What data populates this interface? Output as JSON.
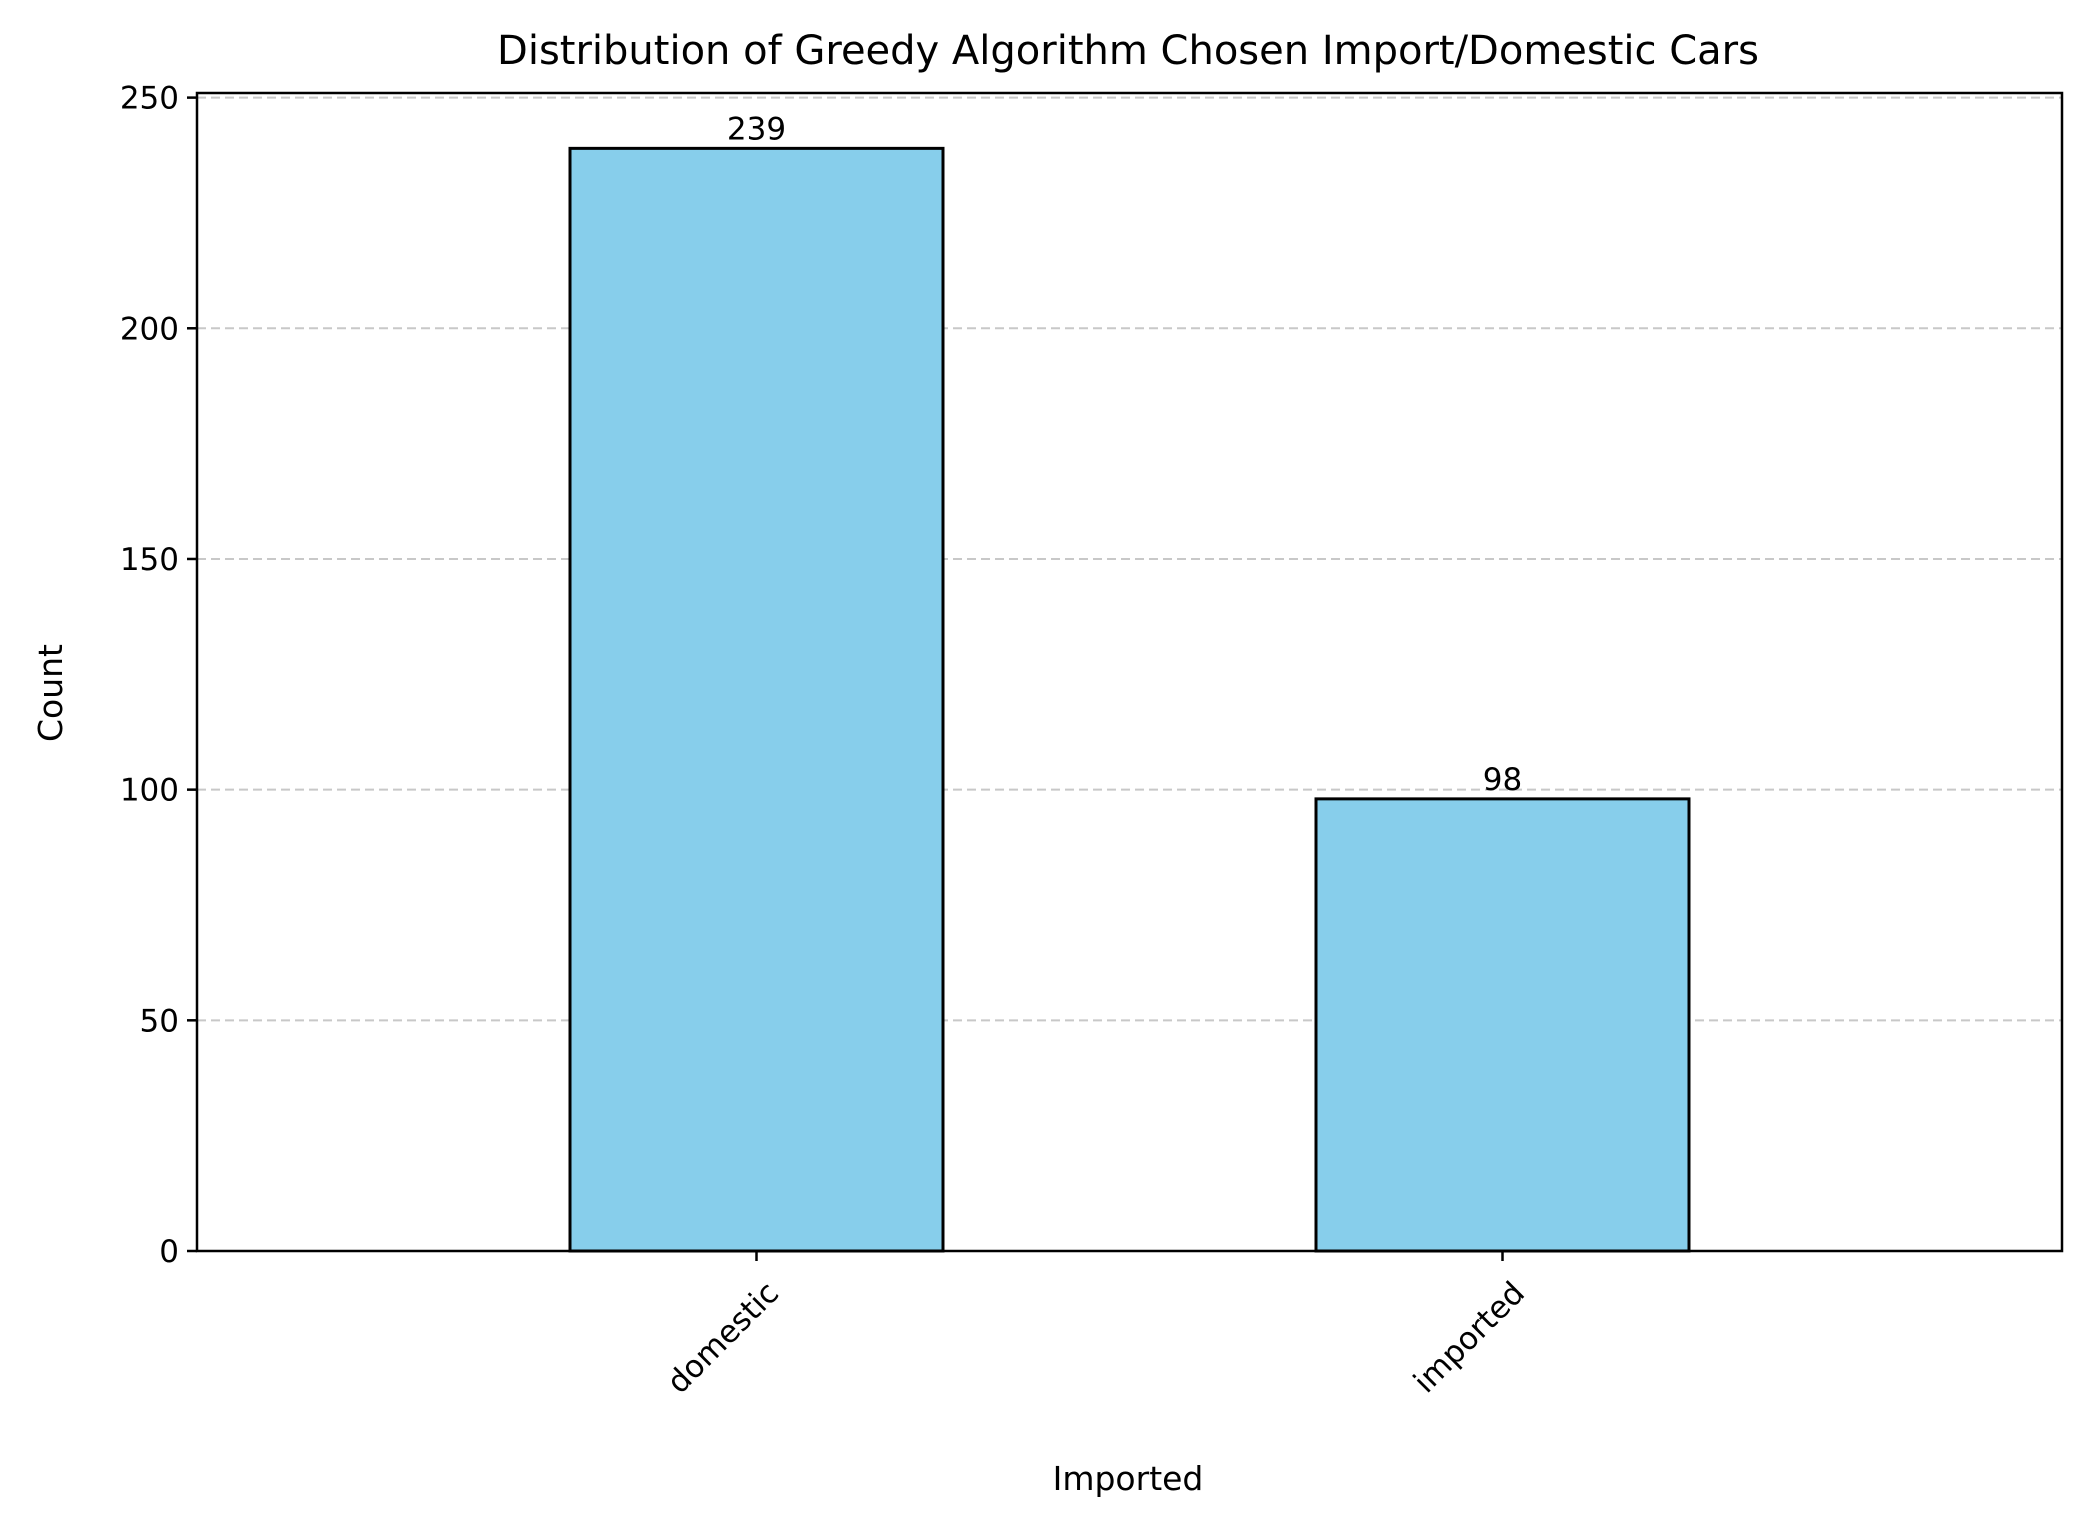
{
  "chart_data": {
    "type": "bar",
    "title": "Distribution of Greedy Algorithm Chosen Import/Domestic Cars",
    "xlabel": "Imported",
    "ylabel": "Count",
    "categories": [
      "domestic",
      "imported"
    ],
    "values": [
      239,
      98
    ],
    "data_labels": [
      "239",
      "98"
    ],
    "ylim": [
      0,
      251
    ],
    "yticks": [
      0,
      50,
      100,
      150,
      200,
      250
    ],
    "ytick_labels": [
      "0",
      "50",
      "100",
      "150",
      "200",
      "250"
    ],
    "grid": "y-axis dashed",
    "legend": "none",
    "colors": {
      "bar_fill": "#87ceeb",
      "bar_edge": "#000000",
      "grid": "#c8c8c8",
      "axis": "#000000"
    }
  }
}
